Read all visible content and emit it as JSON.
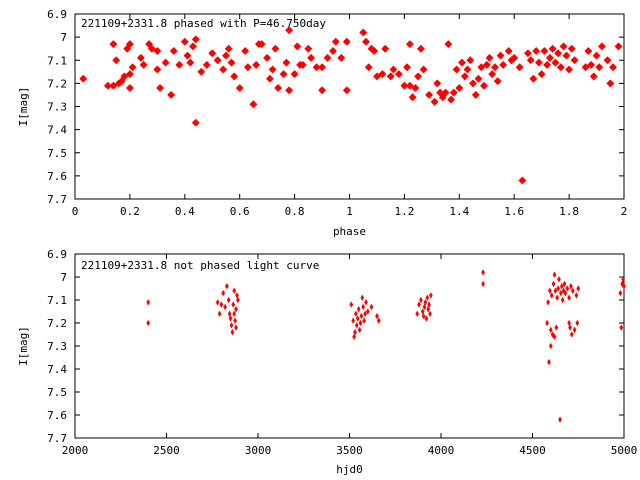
{
  "chart_data": [
    {
      "type": "scatter",
      "title": "221109+2331.8 phased with P=46.750day",
      "xlabel": "phase",
      "ylabel": "I[mag]",
      "xlim": [
        0,
        2
      ],
      "ylim": [
        7.7,
        6.9
      ],
      "y_inverted": true,
      "marker_color": "#ff0000",
      "marker": "star",
      "xticks": [
        "0",
        "0.2",
        "0.4",
        "0.6",
        "0.8",
        "1",
        "1.2",
        "1.4",
        "1.6",
        "1.8",
        "2"
      ],
      "xtick_values": [
        0,
        0.2,
        0.4,
        0.6,
        0.8,
        1,
        1.2,
        1.4,
        1.6,
        1.8,
        2
      ],
      "yticks": [
        "6.9",
        "7",
        "7.1",
        "7.2",
        "7.3",
        "7.4",
        "7.5",
        "7.6",
        "7.7"
      ],
      "ytick_values": [
        6.9,
        7.0,
        7.1,
        7.2,
        7.3,
        7.4,
        7.5,
        7.6,
        7.7
      ],
      "points": [
        [
          0.03,
          7.18
        ],
        [
          0.12,
          7.21
        ],
        [
          0.14,
          7.21
        ],
        [
          0.14,
          7.03
        ],
        [
          0.15,
          7.1
        ],
        [
          0.16,
          7.2
        ],
        [
          0.17,
          7.19
        ],
        [
          0.18,
          7.17
        ],
        [
          0.19,
          7.05
        ],
        [
          0.2,
          7.03
        ],
        [
          0.2,
          7.16
        ],
        [
          0.21,
          7.13
        ],
        [
          0.2,
          7.22
        ],
        [
          0.24,
          7.09
        ],
        [
          0.25,
          7.12
        ],
        [
          0.27,
          7.03
        ],
        [
          0.28,
          7.05
        ],
        [
          0.3,
          7.06
        ],
        [
          0.3,
          7.14
        ],
        [
          0.31,
          7.22
        ],
        [
          0.33,
          7.11
        ],
        [
          0.35,
          7.25
        ],
        [
          0.36,
          7.06
        ],
        [
          0.38,
          7.12
        ],
        [
          0.4,
          7.02
        ],
        [
          0.41,
          7.08
        ],
        [
          0.42,
          7.11
        ],
        [
          0.43,
          7.04
        ],
        [
          0.44,
          7.01
        ],
        [
          0.44,
          7.37
        ],
        [
          0.46,
          7.15
        ],
        [
          0.48,
          7.12
        ],
        [
          0.5,
          7.07
        ],
        [
          0.52,
          7.1
        ],
        [
          0.54,
          7.14
        ],
        [
          0.55,
          7.08
        ],
        [
          0.56,
          7.05
        ],
        [
          0.57,
          7.11
        ],
        [
          0.58,
          7.17
        ],
        [
          0.6,
          7.22
        ],
        [
          0.62,
          7.06
        ],
        [
          0.63,
          7.13
        ],
        [
          0.65,
          7.29
        ],
        [
          0.66,
          7.12
        ],
        [
          0.67,
          7.03
        ],
        [
          0.68,
          7.03
        ],
        [
          0.7,
          7.09
        ],
        [
          0.71,
          7.18
        ],
        [
          0.72,
          7.14
        ],
        [
          0.73,
          7.05
        ],
        [
          0.74,
          7.22
        ],
        [
          0.76,
          7.16
        ],
        [
          0.77,
          7.11
        ],
        [
          0.78,
          7.23
        ],
        [
          0.78,
          6.97
        ],
        [
          0.8,
          7.16
        ],
        [
          0.81,
          7.04
        ],
        [
          0.82,
          7.12
        ],
        [
          0.83,
          7.12
        ],
        [
          0.85,
          7.05
        ],
        [
          0.86,
          7.09
        ],
        [
          0.88,
          7.13
        ],
        [
          0.9,
          7.23
        ],
        [
          0.9,
          7.13
        ],
        [
          0.92,
          7.09
        ],
        [
          0.94,
          7.06
        ],
        [
          0.95,
          7.02
        ],
        [
          0.97,
          7.09
        ],
        [
          0.99,
          7.02
        ],
        [
          0.99,
          7.23
        ],
        [
          1.05,
          6.98
        ],
        [
          1.06,
          7.02
        ],
        [
          1.07,
          7.13
        ],
        [
          1.08,
          7.05
        ],
        [
          1.09,
          7.06
        ],
        [
          1.1,
          7.17
        ],
        [
          1.12,
          7.16
        ],
        [
          1.13,
          7.05
        ],
        [
          1.15,
          7.17
        ],
        [
          1.16,
          7.14
        ],
        [
          1.18,
          7.16
        ],
        [
          1.2,
          7.21
        ],
        [
          1.21,
          7.13
        ],
        [
          1.22,
          7.03
        ],
        [
          1.22,
          7.21
        ],
        [
          1.23,
          7.26
        ],
        [
          1.24,
          7.22
        ],
        [
          1.25,
          7.17
        ],
        [
          1.26,
          7.05
        ],
        [
          1.27,
          7.14
        ],
        [
          1.29,
          7.25
        ],
        [
          1.31,
          7.28
        ],
        [
          1.32,
          7.2
        ],
        [
          1.33,
          7.24
        ],
        [
          1.34,
          7.26
        ],
        [
          1.35,
          7.24
        ],
        [
          1.36,
          7.03
        ],
        [
          1.37,
          7.27
        ],
        [
          1.38,
          7.24
        ],
        [
          1.39,
          7.14
        ],
        [
          1.4,
          7.22
        ],
        [
          1.41,
          7.11
        ],
        [
          1.42,
          7.17
        ],
        [
          1.43,
          7.14
        ],
        [
          1.44,
          7.1
        ],
        [
          1.45,
          7.2
        ],
        [
          1.46,
          7.25
        ],
        [
          1.47,
          7.18
        ],
        [
          1.48,
          7.13
        ],
        [
          1.49,
          7.21
        ],
        [
          1.5,
          7.12
        ],
        [
          1.51,
          7.09
        ],
        [
          1.52,
          7.16
        ],
        [
          1.53,
          7.13
        ],
        [
          1.54,
          7.19
        ],
        [
          1.55,
          7.08
        ],
        [
          1.56,
          7.12
        ],
        [
          1.58,
          7.06
        ],
        [
          1.59,
          7.1
        ],
        [
          1.6,
          7.09
        ],
        [
          1.62,
          7.13
        ],
        [
          1.63,
          7.62
        ],
        [
          1.65,
          7.07
        ],
        [
          1.66,
          7.1
        ],
        [
          1.67,
          7.18
        ],
        [
          1.68,
          7.06
        ],
        [
          1.69,
          7.11
        ],
        [
          1.7,
          7.16
        ],
        [
          1.71,
          7.06
        ],
        [
          1.72,
          7.12
        ],
        [
          1.73,
          7.09
        ],
        [
          1.74,
          7.05
        ],
        [
          1.75,
          7.11
        ],
        [
          1.76,
          7.07
        ],
        [
          1.77,
          7.13
        ],
        [
          1.78,
          7.04
        ],
        [
          1.79,
          7.08
        ],
        [
          1.8,
          7.14
        ],
        [
          1.81,
          7.05
        ],
        [
          1.82,
          7.1
        ],
        [
          1.86,
          7.13
        ],
        [
          1.87,
          7.06
        ],
        [
          1.88,
          7.12
        ],
        [
          1.89,
          7.17
        ],
        [
          1.9,
          7.08
        ],
        [
          1.91,
          7.13
        ],
        [
          1.92,
          7.04
        ],
        [
          1.94,
          7.1
        ],
        [
          1.95,
          7.2
        ],
        [
          1.96,
          7.13
        ],
        [
          1.98,
          7.04
        ]
      ]
    },
    {
      "type": "scatter",
      "title": "221109+2331.8 not phased light curve",
      "xlabel": "hjd0",
      "ylabel": "I[mag]",
      "xlim": [
        2000,
        5000
      ],
      "ylim": [
        7.7,
        6.9
      ],
      "y_inverted": true,
      "marker_color": "#ff0000",
      "marker": "diamond",
      "xticks": [
        "2000",
        "2500",
        "3000",
        "3500",
        "4000",
        "4500",
        "5000"
      ],
      "xtick_values": [
        2000,
        2500,
        3000,
        3500,
        4000,
        4500,
        5000
      ],
      "yticks": [
        "6.9",
        "7",
        "7.1",
        "7.2",
        "7.3",
        "7.4",
        "7.5",
        "7.6",
        "7.7"
      ],
      "ytick_values": [
        6.9,
        7.0,
        7.1,
        7.2,
        7.3,
        7.4,
        7.5,
        7.6,
        7.7
      ],
      "points": [
        [
          2400,
          7.11
        ],
        [
          2400,
          7.2
        ],
        [
          2780,
          7.11
        ],
        [
          2790,
          7.16
        ],
        [
          2800,
          7.12
        ],
        [
          2810,
          7.07
        ],
        [
          2820,
          7.13
        ],
        [
          2830,
          7.04
        ],
        [
          2840,
          7.1
        ],
        [
          2845,
          7.16
        ],
        [
          2850,
          7.18
        ],
        [
          2855,
          7.21
        ],
        [
          2860,
          7.24
        ],
        [
          2865,
          7.12
        ],
        [
          2870,
          7.06
        ],
        [
          2875,
          7.19
        ],
        [
          2880,
          7.14
        ],
        [
          2885,
          7.08
        ],
        [
          2890,
          7.1
        ],
        [
          2880,
          7.22
        ],
        [
          2870,
          7.16
        ],
        [
          3510,
          7.12
        ],
        [
          3520,
          7.19
        ],
        [
          3525,
          7.26
        ],
        [
          3530,
          7.24
        ],
        [
          3535,
          7.16
        ],
        [
          3540,
          7.21
        ],
        [
          3545,
          7.18
        ],
        [
          3550,
          7.14
        ],
        [
          3555,
          7.23
        ],
        [
          3560,
          7.2
        ],
        [
          3565,
          7.17
        ],
        [
          3570,
          7.09
        ],
        [
          3575,
          7.13
        ],
        [
          3580,
          7.19
        ],
        [
          3585,
          7.16
        ],
        [
          3590,
          7.11
        ],
        [
          3600,
          7.15
        ],
        [
          3620,
          7.13
        ],
        [
          3650,
          7.17
        ],
        [
          3660,
          7.19
        ],
        [
          3870,
          7.16
        ],
        [
          3880,
          7.12
        ],
        [
          3890,
          7.1
        ],
        [
          3900,
          7.15
        ],
        [
          3905,
          7.17
        ],
        [
          3910,
          7.13
        ],
        [
          3915,
          7.11
        ],
        [
          3920,
          7.18
        ],
        [
          3925,
          7.09
        ],
        [
          3930,
          7.14
        ],
        [
          3935,
          7.12
        ],
        [
          3940,
          7.16
        ],
        [
          3945,
          7.08
        ],
        [
          4230,
          6.98
        ],
        [
          4230,
          7.03
        ],
        [
          4580,
          7.2
        ],
        [
          4585,
          7.11
        ],
        [
          4590,
          7.37
        ],
        [
          4595,
          7.06
        ],
        [
          4600,
          7.23
        ],
        [
          4605,
          7.08
        ],
        [
          4610,
          7.25
        ],
        [
          4615,
          7.03
        ],
        [
          4620,
          6.99
        ],
        [
          4625,
          7.06
        ],
        [
          4630,
          7.22
        ],
        [
          4635,
          7.09
        ],
        [
          4640,
          7.05
        ],
        [
          4645,
          7.01
        ],
        [
          4650,
          7.62
        ],
        [
          4655,
          7.07
        ],
        [
          4660,
          7.04
        ],
        [
          4665,
          7.1
        ],
        [
          4670,
          7.06
        ],
        [
          4675,
          7.03
        ],
        [
          4680,
          7.07
        ],
        [
          4690,
          7.05
        ],
        [
          4700,
          7.09
        ],
        [
          4705,
          7.22
        ],
        [
          4710,
          7.04
        ],
        [
          4715,
          7.25
        ],
        [
          4720,
          7.06
        ],
        [
          4730,
          7.23
        ],
        [
          4740,
          7.08
        ],
        [
          4745,
          7.2
        ],
        [
          4750,
          7.05
        ],
        [
          4700,
          7.2
        ],
        [
          4620,
          7.26
        ],
        [
          4600,
          7.3
        ],
        [
          4980,
          7.07
        ],
        [
          4985,
          7.22
        ],
        [
          4990,
          7.03
        ],
        [
          4995,
          7.01
        ],
        [
          5000,
          7.04
        ]
      ]
    }
  ]
}
